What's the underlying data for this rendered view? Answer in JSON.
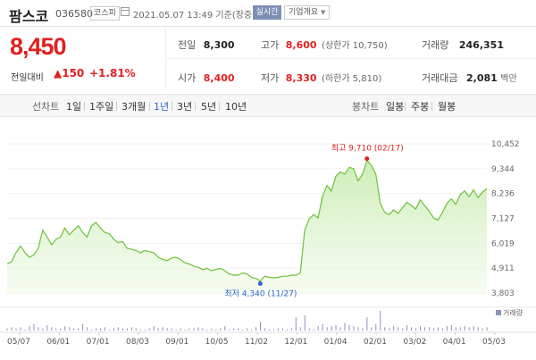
{
  "header": {
    "name": "팜스코",
    "code": "036580",
    "market": "코스피",
    "datetime": "2021.05.07 13:49 기준(장중)",
    "realtime_label": "실시간",
    "company_label": "기업개요"
  },
  "price": {
    "current": "8,450",
    "change_label": "전일대비",
    "change_value": "▲150",
    "change_pct": "+1.81%"
  },
  "stats": {
    "prev_label": "전일",
    "prev_value": "8,300",
    "high_label": "고가",
    "high_value": "8,600",
    "upper_label": "(상한가 10,750)",
    "volume_label": "거래량",
    "volume_value": "246,351",
    "open_label": "시가",
    "open_value": "8,400",
    "low_label": "저가",
    "low_value": "8,330",
    "lower_label": "(하한가 5,810)",
    "amount_label": "거래대금",
    "amount_value": "2,081",
    "amount_unit": "백만"
  },
  "periods": {
    "line_label": "선차트",
    "line_items": [
      "1일",
      "1주일",
      "3개월",
      "1년",
      "3년",
      "5년",
      "10년"
    ],
    "active": "1년",
    "candle_label": "봉차트",
    "candle_items": [
      "일봉",
      "주봉",
      "월봉"
    ]
  },
  "colors": {
    "up": "#e02020",
    "line": "#6dc13b",
    "fill": "#c9ecb2",
    "active": "#2b64c8"
  },
  "chart_data": {
    "type": "area",
    "yticks": [
      10452,
      9344,
      8236,
      7127,
      6019,
      4911,
      3803
    ],
    "ylim": [
      3803,
      10452
    ],
    "xticks": [
      "05/07",
      "06/01",
      "07/01",
      "08/03",
      "09/01",
      "10/05",
      "11/02",
      "12/01",
      "01/04",
      "02/01",
      "03/02",
      "04/01",
      "05/03"
    ],
    "max_label": "최고 9,710 (02/17)",
    "min_label": "최저 4,340 (11/27)",
    "volume_label": "거래량",
    "values": [
      5100,
      5200,
      5600,
      5900,
      5600,
      5400,
      5500,
      5800,
      6600,
      6300,
      5950,
      6200,
      6300,
      6700,
      6400,
      6600,
      6800,
      6500,
      6300,
      6800,
      6950,
      6700,
      6500,
      6450,
      6200,
      6050,
      6100,
      5800,
      5750,
      5700,
      5600,
      5700,
      5650,
      5600,
      5400,
      5300,
      5250,
      5350,
      5400,
      5300,
      5150,
      5100,
      5000,
      4950,
      4850,
      4900,
      4800,
      4850,
      4900,
      4800,
      4650,
      4600,
      4600,
      4700,
      4650,
      4500,
      4450,
      4340,
      4550,
      4500,
      4480,
      4500,
      4550,
      4550,
      4600,
      4600,
      4700,
      6600,
      7100,
      7300,
      7150,
      8100,
      8600,
      8350,
      9000,
      9200,
      9100,
      9400,
      9350,
      8800,
      9100,
      9710,
      9500,
      9100,
      7800,
      7400,
      7300,
      7500,
      7350,
      7600,
      7850,
      7700,
      7550,
      7950,
      7700,
      7450,
      7150,
      7050,
      7400,
      7800,
      8000,
      7750,
      8200,
      8350,
      8100,
      8400,
      8050,
      8300,
      8450
    ],
    "volumes": [
      2,
      3,
      2,
      3,
      1,
      4,
      6,
      3,
      2,
      5,
      3,
      2,
      2,
      4,
      3,
      2,
      2,
      6,
      3,
      1,
      2,
      2,
      3,
      1,
      2,
      3,
      2,
      2,
      3,
      2,
      1,
      1,
      2,
      4,
      2,
      3,
      2,
      2,
      1,
      2,
      1,
      2,
      2,
      3,
      2,
      1,
      2,
      1,
      2,
      4,
      1,
      2,
      2,
      1,
      2,
      1,
      3,
      8,
      2,
      1,
      1,
      2,
      2,
      1,
      2,
      12,
      3,
      14,
      2,
      1,
      4,
      6,
      3,
      4,
      5,
      3,
      7,
      5,
      4,
      3,
      2,
      12,
      3,
      6,
      18,
      3,
      2,
      4,
      3,
      2,
      5,
      3,
      2,
      4,
      3,
      3,
      2,
      3,
      2,
      4,
      5,
      3,
      3,
      4,
      3,
      4,
      3,
      2,
      3
    ]
  }
}
